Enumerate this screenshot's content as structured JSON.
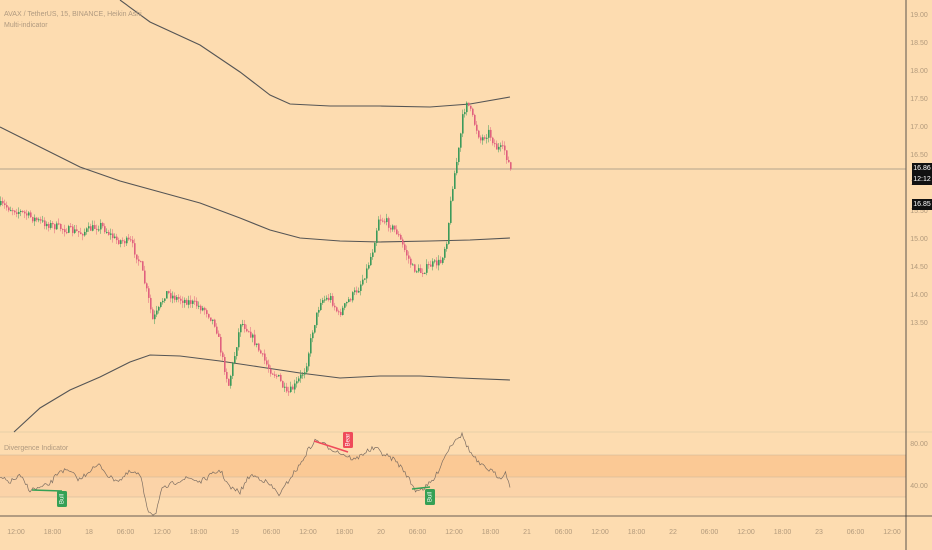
{
  "header": {
    "symbol_line": "AVAX / TetherUS, 15, BINANCE, Heikin Ashi",
    "indicator_name": "Multi-indicator"
  },
  "oscillator": {
    "name": "Divergence Indicator",
    "levels": [
      "80.00",
      "40.00"
    ],
    "bear_label": "Bear",
    "bull_labels": [
      "Bull",
      "Bull"
    ]
  },
  "price_axis": {
    "ticks": [
      "19.00",
      "18.50",
      "18.00",
      "17.50",
      "17.00",
      "16.50",
      "16.00",
      "15.50",
      "15.00",
      "14.50",
      "14.00",
      "13.50"
    ],
    "current_price": "16.86",
    "countdown": "12:12",
    "secondary_price": "16.85"
  },
  "time_axis": {
    "ticks": [
      "12:00",
      "18:00",
      "18",
      "06:00",
      "12:00",
      "18:00",
      "19",
      "06:00",
      "12:00",
      "18:00",
      "20",
      "06:00",
      "12:00",
      "18:00",
      "21",
      "06:00",
      "12:00",
      "18:00",
      "22",
      "06:00",
      "12:00",
      "18:00",
      "23",
      "06:00",
      "12:00"
    ]
  },
  "colors": {
    "background": "#fddcb0",
    "candle_up": "#3b9a5a",
    "candle_down": "#e0607e",
    "bear_label": "#ef4a5a",
    "bull_label": "#35a055",
    "band_line": "#555555"
  }
}
